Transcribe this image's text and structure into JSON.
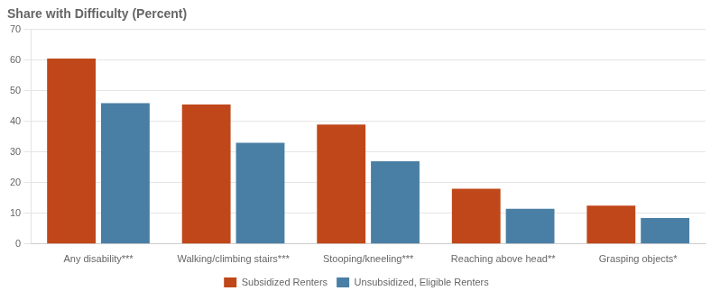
{
  "chart_data": {
    "type": "bar",
    "title": "Share with Difficulty (Percent)",
    "categories": [
      "Any disability***",
      "Walking/climbing stairs***",
      "Stooping/kneeling***",
      "Reaching above head**",
      "Grasping objects*"
    ],
    "series": [
      {
        "name": "Subsidized Renters",
        "color": "#c0471a",
        "values": [
          60.5,
          45.5,
          39.0,
          18.0,
          12.5
        ]
      },
      {
        "name": "Unsubsidized, Eligible Renters",
        "color": "#4a7fa5",
        "values": [
          46.0,
          33.0,
          27.0,
          11.5,
          8.5
        ]
      }
    ],
    "ylim": [
      0,
      70
    ],
    "yticks": [
      0,
      10,
      20,
      30,
      40,
      50,
      60,
      70
    ],
    "grid": true,
    "legend": "bottom"
  }
}
